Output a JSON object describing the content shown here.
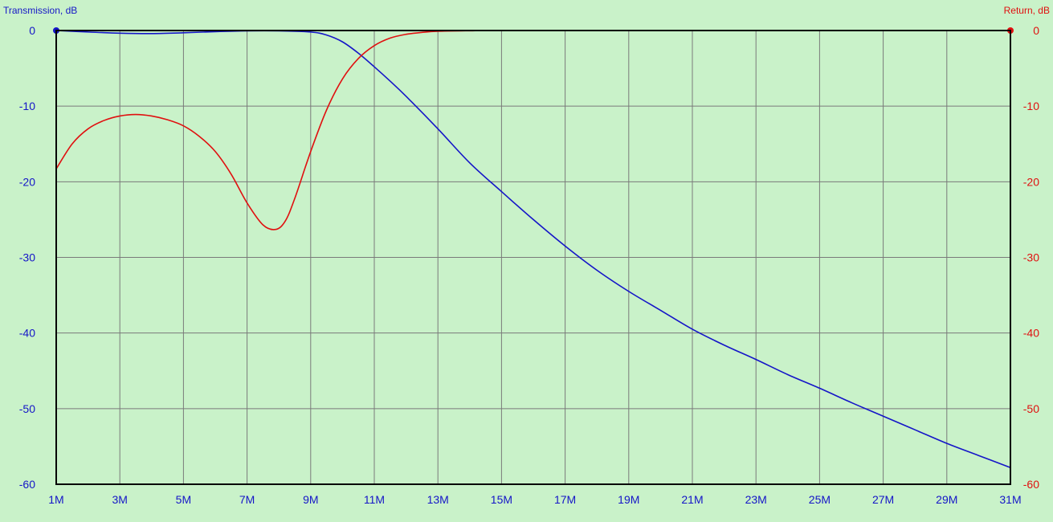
{
  "chart_data": {
    "type": "line",
    "title": "",
    "xlabel": "",
    "ylabel_left": "Transmission, dB",
    "ylabel_right": "Return, dB",
    "xlim": [
      1,
      31
    ],
    "ylim": [
      -60,
      0
    ],
    "x_tick_labels": [
      "1M",
      "3M",
      "5M",
      "7M",
      "9M",
      "11M",
      "13M",
      "15M",
      "17M",
      "19M",
      "21M",
      "23M",
      "25M",
      "27M",
      "29M",
      "31M"
    ],
    "y_tick_labels_left": [
      "0",
      "-10",
      "-20",
      "-30",
      "-40",
      "-50",
      "-60"
    ],
    "y_tick_labels_right": [
      "0",
      "-10",
      "-20",
      "-30",
      "-40",
      "-50",
      "-60"
    ],
    "grid": true,
    "background_color": "#c9f2c9",
    "series": [
      {
        "name": "Transmission, dB",
        "axis": "left",
        "color": "#1515c8",
        "x": [
          1,
          2,
          3,
          4,
          5,
          6,
          7,
          8,
          9,
          9.5,
          10,
          10.5,
          11,
          11.5,
          12,
          13,
          14,
          15,
          16,
          17,
          18,
          19,
          20,
          21,
          22,
          23,
          24,
          25,
          26,
          27,
          28,
          29,
          30,
          31
        ],
        "y": [
          0,
          -0.2,
          -0.35,
          -0.4,
          -0.3,
          -0.15,
          -0.05,
          -0.05,
          -0.2,
          -0.6,
          -1.5,
          -3.0,
          -4.8,
          -6.7,
          -8.7,
          -13.0,
          -17.5,
          -21.3,
          -25.0,
          -28.5,
          -31.7,
          -34.5,
          -37.0,
          -39.5,
          -41.6,
          -43.5,
          -45.5,
          -47.3,
          -49.2,
          -51.0,
          -52.8,
          -54.6,
          -56.2,
          -57.8
        ]
      },
      {
        "name": "Return, dB",
        "axis": "right",
        "color": "#e01010",
        "x": [
          1,
          1.5,
          2,
          2.5,
          3,
          3.5,
          4,
          4.5,
          5,
          5.5,
          6,
          6.5,
          7,
          7.5,
          7.9,
          8.2,
          8.5,
          9,
          9.5,
          10,
          10.5,
          11,
          11.5,
          12,
          12.5,
          13,
          14,
          15,
          20,
          25,
          31
        ],
        "y": [
          -18.3,
          -15.0,
          -13.0,
          -11.9,
          -11.3,
          -11.1,
          -11.3,
          -11.8,
          -12.6,
          -14.0,
          -16.0,
          -19.0,
          -22.8,
          -25.7,
          -26.3,
          -25.2,
          -22.2,
          -16.0,
          -10.5,
          -6.4,
          -3.7,
          -2.0,
          -1.0,
          -0.5,
          -0.25,
          -0.1,
          -0.03,
          0,
          0,
          0,
          0
        ]
      }
    ]
  }
}
